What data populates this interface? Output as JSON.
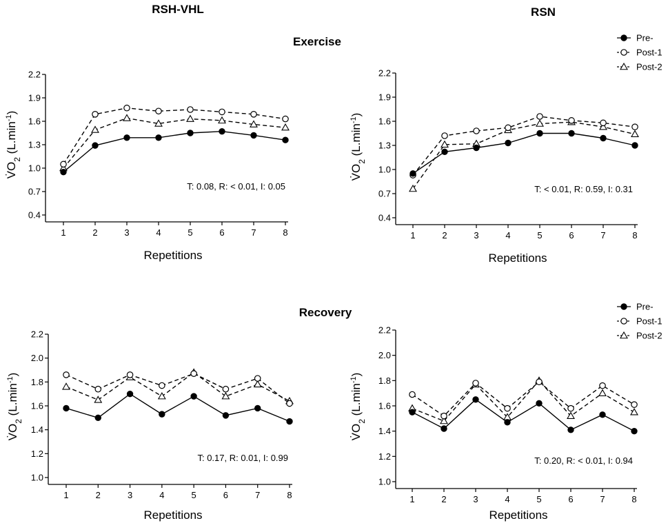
{
  "column_titles": [
    "RSH-VHL",
    "RSN"
  ],
  "section_titles": [
    "Exercise",
    "Recovery"
  ],
  "legend": [
    {
      "label": "Pre-",
      "marker": "filled-circle",
      "dash": "solid"
    },
    {
      "label": "Post-1",
      "marker": "open-circle",
      "dash": "dashed"
    },
    {
      "label": "Post-2",
      "marker": "open-triangle",
      "dash": "dashed"
    }
  ],
  "chart_data": [
    {
      "type": "line",
      "panel": "RSH-VHL Exercise",
      "x": [
        1,
        2,
        3,
        4,
        5,
        6,
        7,
        8
      ],
      "xlabel": "Repetitions",
      "ylabel_main": "V̇O",
      "ylabel_sub": "2",
      "ylabel_unit": " (L.min",
      "ylabel_sup": "-1",
      "ylabel_close": ")",
      "ylim": [
        0.4,
        2.2
      ],
      "yticks": [
        "0.4",
        "0.7",
        "1.0",
        "1.3",
        "1.6",
        "1.9",
        "2.2"
      ],
      "stats": "T: 0.08, R: < 0.01, I: 0.05",
      "series": [
        {
          "name": "Pre-",
          "values": [
            0.95,
            1.29,
            1.39,
            1.39,
            1.45,
            1.47,
            1.42,
            1.36
          ]
        },
        {
          "name": "Post-1",
          "values": [
            1.05,
            1.69,
            1.77,
            1.73,
            1.75,
            1.72,
            1.69,
            1.63
          ]
        },
        {
          "name": "Post-2",
          "values": [
            1.0,
            1.49,
            1.64,
            1.57,
            1.63,
            1.61,
            1.56,
            1.52
          ]
        }
      ]
    },
    {
      "type": "line",
      "panel": "RSN Exercise",
      "x": [
        1,
        2,
        3,
        4,
        5,
        6,
        7,
        8
      ],
      "xlabel": "Repetitions",
      "ylabel_main": "V̇O",
      "ylabel_sub": "2",
      "ylabel_unit": " (L.min",
      "ylabel_sup": "-1",
      "ylabel_close": ")",
      "ylim": [
        0.4,
        2.2
      ],
      "yticks": [
        "0.4",
        "0.7",
        "1.0",
        "1.3",
        "1.6",
        "1.9",
        "2.2"
      ],
      "stats": "T: < 0.01, R: 0.59, I: 0.31",
      "series": [
        {
          "name": "Pre-",
          "values": [
            0.95,
            1.22,
            1.27,
            1.33,
            1.45,
            1.45,
            1.39,
            1.3
          ]
        },
        {
          "name": "Post-1",
          "values": [
            0.93,
            1.42,
            1.48,
            1.52,
            1.66,
            1.61,
            1.58,
            1.53
          ]
        },
        {
          "name": "Post-2",
          "values": [
            0.76,
            1.31,
            1.32,
            1.49,
            1.57,
            1.59,
            1.53,
            1.44
          ]
        }
      ]
    },
    {
      "type": "line",
      "panel": "RSH-VHL Recovery",
      "x": [
        1,
        2,
        3,
        4,
        5,
        6,
        7,
        8
      ],
      "xlabel": "Repetitions",
      "ylabel_main": "V̇O",
      "ylabel_sub": "2",
      "ylabel_unit": " (L.min",
      "ylabel_sup": "-1",
      "ylabel_close": ")",
      "ylim": [
        1.0,
        2.2
      ],
      "yticks": [
        "1.0",
        "1.2",
        "1.4",
        "1.6",
        "1.8",
        "2.0",
        "2.2"
      ],
      "stats": "T: 0.17, R: 0.01, I: 0.99",
      "series": [
        {
          "name": "Pre-",
          "values": [
            1.58,
            1.5,
            1.7,
            1.53,
            1.68,
            1.52,
            1.58,
            1.47
          ]
        },
        {
          "name": "Post-1",
          "values": [
            1.86,
            1.74,
            1.86,
            1.77,
            1.87,
            1.74,
            1.83,
            1.62
          ]
        },
        {
          "name": "Post-2",
          "values": [
            1.76,
            1.65,
            1.84,
            1.68,
            1.88,
            1.68,
            1.78,
            1.64
          ]
        }
      ]
    },
    {
      "type": "line",
      "panel": "RSN Recovery",
      "x": [
        1,
        2,
        3,
        4,
        5,
        6,
        7,
        8
      ],
      "xlabel": "Repetitions",
      "ylabel_main": "V̇O",
      "ylabel_sub": "2",
      "ylabel_unit": " (L.min",
      "ylabel_sup": "-1",
      "ylabel_close": ")",
      "ylim": [
        1.0,
        2.2
      ],
      "yticks": [
        "1.0",
        "1.2",
        "1.4",
        "1.6",
        "1.8",
        "2.0",
        "2.2"
      ],
      "stats": "T: 0.20, R: < 0.01, I: 0.94",
      "series": [
        {
          "name": "Pre-",
          "values": [
            1.55,
            1.42,
            1.65,
            1.47,
            1.62,
            1.41,
            1.53,
            1.4
          ]
        },
        {
          "name": "Post-1",
          "values": [
            1.69,
            1.52,
            1.78,
            1.58,
            1.79,
            1.58,
            1.76,
            1.61
          ]
        },
        {
          "name": "Post-2",
          "values": [
            1.58,
            1.48,
            1.77,
            1.51,
            1.8,
            1.52,
            1.7,
            1.55
          ]
        }
      ]
    }
  ]
}
